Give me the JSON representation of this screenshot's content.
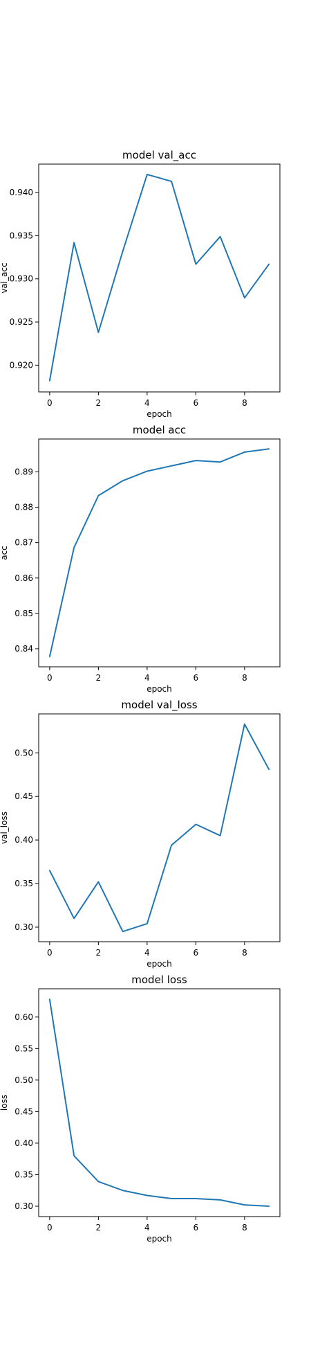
{
  "figure": {
    "background": "#ffffff",
    "line_color": "#1f77b4"
  },
  "chart_data": [
    {
      "type": "line",
      "title": "model val_acc",
      "xlabel": "epoch",
      "ylabel": "val_acc",
      "xlim": [
        -0.45,
        9.45
      ],
      "ylim": [
        0.9169,
        0.9433
      ],
      "xticks": [
        0,
        2,
        4,
        6,
        8
      ],
      "yticks": [
        0.92,
        0.925,
        0.93,
        0.935,
        0.94
      ],
      "ytick_labels": [
        "0.920",
        "0.925",
        "0.930",
        "0.935",
        "0.940"
      ],
      "grid": false,
      "series": [
        {
          "x": [
            0,
            1,
            2,
            3,
            4,
            5,
            6,
            7,
            8,
            9
          ],
          "values": [
            0.9182,
            0.9342,
            0.9238,
            0.9332,
            0.9421,
            0.9413,
            0.9317,
            0.9349,
            0.9278,
            0.9317
          ]
        }
      ]
    },
    {
      "type": "line",
      "title": "model acc",
      "xlabel": "epoch",
      "ylabel": "acc",
      "xlim": [
        -0.45,
        9.45
      ],
      "ylim": [
        0.8349,
        0.8993
      ],
      "xticks": [
        0,
        2,
        4,
        6,
        8
      ],
      "yticks": [
        0.84,
        0.85,
        0.86,
        0.87,
        0.88,
        0.89
      ],
      "ytick_labels": [
        "0.84",
        "0.85",
        "0.86",
        "0.87",
        "0.88",
        "0.89"
      ],
      "grid": false,
      "series": [
        {
          "x": [
            0,
            1,
            2,
            3,
            4,
            5,
            6,
            7,
            8,
            9
          ],
          "values": [
            0.8378,
            0.8686,
            0.8833,
            0.8875,
            0.8902,
            0.8917,
            0.8932,
            0.8928,
            0.8956,
            0.8965
          ]
        }
      ]
    },
    {
      "type": "line",
      "title": "model val_loss",
      "xlabel": "epoch",
      "ylabel": "val_loss",
      "xlim": [
        -0.45,
        9.45
      ],
      "ylim": [
        0.2833,
        0.5447
      ],
      "xticks": [
        0,
        2,
        4,
        6,
        8
      ],
      "yticks": [
        0.3,
        0.35,
        0.4,
        0.45,
        0.5
      ],
      "ytick_labels": [
        "0.30",
        "0.35",
        "0.40",
        "0.45",
        "0.50"
      ],
      "grid": false,
      "series": [
        {
          "x": [
            0,
            1,
            2,
            3,
            4,
            5,
            6,
            7,
            8,
            9
          ],
          "values": [
            0.365,
            0.31,
            0.352,
            0.295,
            0.304,
            0.394,
            0.418,
            0.405,
            0.533,
            0.481
          ]
        }
      ]
    },
    {
      "type": "line",
      "title": "model loss",
      "xlabel": "epoch",
      "ylabel": "loss",
      "xlim": [
        -0.45,
        9.45
      ],
      "ylim": [
        0.2835,
        0.6448
      ],
      "xticks": [
        0,
        2,
        4,
        6,
        8
      ],
      "yticks": [
        0.3,
        0.35,
        0.4,
        0.45,
        0.5,
        0.55,
        0.6
      ],
      "ytick_labels": [
        "0.30",
        "0.35",
        "0.40",
        "0.45",
        "0.50",
        "0.55",
        "0.60"
      ],
      "grid": false,
      "series": [
        {
          "x": [
            0,
            1,
            2,
            3,
            4,
            5,
            6,
            7,
            8,
            9
          ],
          "values": [
            0.628,
            0.38,
            0.339,
            0.325,
            0.317,
            0.312,
            0.312,
            0.31,
            0.302,
            0.3
          ]
        }
      ]
    }
  ]
}
